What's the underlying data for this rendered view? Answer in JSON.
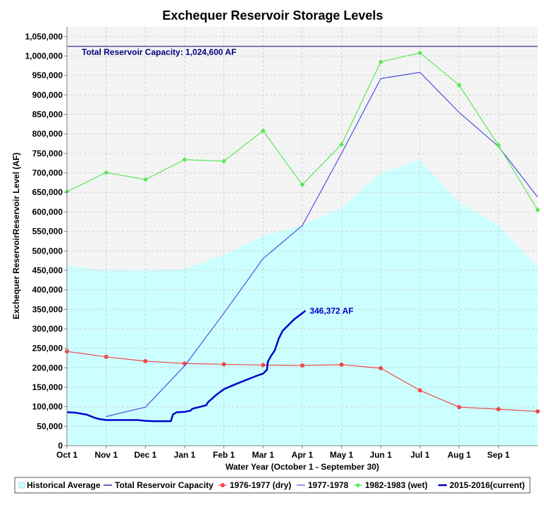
{
  "chart_data": {
    "type": "line",
    "title": "Exchequer Reservoir Storage Levels",
    "xlabel": "Water Year (October 1 - September 30)",
    "ylabel": "Exchequer ReservoirReservoir Level (AF)",
    "ylim": [
      0,
      1075000
    ],
    "yticks": [
      0,
      50000,
      100000,
      150000,
      200000,
      250000,
      300000,
      350000,
      400000,
      450000,
      500000,
      550000,
      600000,
      650000,
      700000,
      750000,
      800000,
      850000,
      900000,
      950000,
      1000000,
      1050000
    ],
    "ytick_labels": [
      "0",
      "50,000",
      "100,000",
      "150,000",
      "200,000",
      "250,000",
      "300,000",
      "350,000",
      "400,000",
      "450,000",
      "500,000",
      "550,000",
      "600,000",
      "650,000",
      "700,000",
      "750,000",
      "800,000",
      "850,000",
      "900,000",
      "950,000",
      "1,000,000",
      "1,050,000"
    ],
    "xlim": [
      0,
      12
    ],
    "categories": [
      "Oct 1",
      "Nov 1",
      "Dec 1",
      "Jan 1",
      "Feb 1",
      "Mar 1",
      "Apr 1",
      "May 1",
      "Jun 1",
      "Jul 1",
      "Aug 1",
      "Sep 1"
    ],
    "grid": true,
    "legend_position": "bottom",
    "historical_average": {
      "name": "Historical Average",
      "color": "#ccffff",
      "x": [
        0,
        1,
        2,
        3,
        4,
        5,
        6,
        7,
        8,
        9,
        10,
        11,
        12
      ],
      "values": [
        462000,
        450000,
        450000,
        453000,
        490000,
        538000,
        565000,
        610000,
        700000,
        733000,
        625000,
        565000,
        458000
      ]
    },
    "capacity": {
      "name": "Total Reservoir Capacity",
      "value": 1024600,
      "label": "Total Reservoir Capacity: 1,024,600 AF",
      "color": "#000080"
    },
    "series": [
      {
        "name": "1976-1977 (dry)",
        "color": "#f04848",
        "marker": "circle",
        "x": [
          0,
          1,
          2,
          3,
          4,
          5,
          6,
          7,
          8,
          9,
          10,
          11,
          12
        ],
        "values": [
          242000,
          228000,
          217000,
          211000,
          209000,
          207000,
          206000,
          208000,
          199000,
          142000,
          99000,
          94000,
          88000
        ]
      },
      {
        "name": "1977-1978",
        "color": "#5050e0",
        "marker": "none",
        "x": [
          1,
          2,
          3,
          4,
          5,
          6,
          7,
          8,
          9,
          10,
          11,
          12
        ],
        "values": [
          75000,
          99000,
          205000,
          340000,
          480000,
          565000,
          750000,
          942000,
          958000,
          855000,
          768000,
          638000
        ]
      },
      {
        "name": "1982-1983 (wet)",
        "color": "#58e858",
        "marker": "diamond",
        "x": [
          0,
          1,
          2,
          3,
          4,
          5,
          6,
          7,
          8,
          9,
          10,
          11,
          12
        ],
        "values": [
          652000,
          701000,
          683000,
          734000,
          730000,
          808000,
          670000,
          773000,
          985000,
          1008000,
          925000,
          771000,
          605000
        ]
      },
      {
        "name": "2015-2016(current)",
        "color": "#0000cc",
        "marker": "none",
        "x": [
          0,
          0.2,
          0.5,
          0.7,
          0.85,
          1.0,
          1.2,
          1.5,
          1.8,
          2.0,
          2.2,
          2.5,
          2.65,
          2.7,
          2.8,
          3.0,
          3.15,
          3.2,
          3.4,
          3.55,
          3.6,
          3.8,
          4.0,
          4.3,
          4.6,
          4.8,
          5.0,
          5.1,
          5.12,
          5.2,
          5.3,
          5.4,
          5.5,
          5.6,
          5.8,
          6.0,
          6.08
        ],
        "values": [
          86000,
          85000,
          80000,
          72000,
          68000,
          66000,
          66000,
          66000,
          66000,
          64000,
          63000,
          63000,
          63000,
          80000,
          86000,
          87000,
          90000,
          95000,
          100000,
          104000,
          112000,
          130000,
          145000,
          158000,
          170000,
          178000,
          185000,
          195000,
          215000,
          230000,
          245000,
          275000,
          295000,
          305000,
          325000,
          340000,
          346372
        ]
      }
    ],
    "end_label": "346,372 AF"
  }
}
